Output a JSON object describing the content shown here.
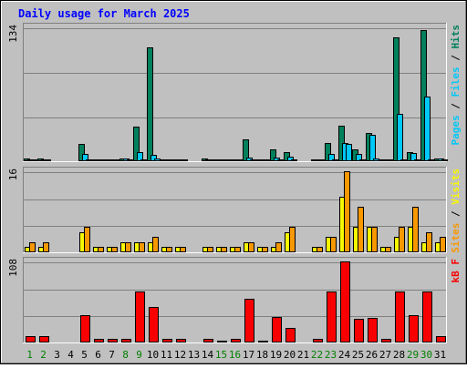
{
  "chart_data": {
    "type": "bar",
    "title": "Daily usage for March 2025",
    "categories": [
      "1",
      "2",
      "3",
      "4",
      "5",
      "6",
      "7",
      "8",
      "9",
      "10",
      "11",
      "12",
      "13",
      "14",
      "15",
      "16",
      "17",
      "18",
      "19",
      "20",
      "21",
      "22",
      "23",
      "24",
      "25",
      "26",
      "27",
      "28",
      "29",
      "30",
      "31"
    ],
    "weekend_days": [
      "1",
      "2",
      "8",
      "9",
      "15",
      "16",
      "22",
      "23",
      "29",
      "30"
    ],
    "panels": [
      {
        "name": "hits-files-pages",
        "ylabel": "Pages / Files / Hits",
        "max_label": "134",
        "ylim": [
          0,
          134
        ],
        "series": [
          {
            "name": "Hits",
            "color": "#00805c",
            "values": [
              3,
              3,
              0,
              0,
              17,
              2,
              2,
              3,
              35,
              114,
              2,
              2,
              0,
              3,
              2,
              2,
              22,
              2,
              12,
              9,
              0,
              2,
              18,
              36,
              12,
              28,
              2,
              124,
              9,
              131,
              3
            ]
          },
          {
            "name": "Files",
            "color": "#00c8f8",
            "values": [
              2,
              2,
              0,
              0,
              7,
              2,
              2,
              3,
              9,
              6,
              2,
              2,
              0,
              2,
              2,
              2,
              4,
              2,
              4,
              5,
              0,
              2,
              7,
              18,
              7,
              26,
              2,
              47,
              8,
              65,
              3
            ]
          },
          {
            "name": "Pages",
            "color": "#00c8f8",
            "values": [
              2,
              2,
              0,
              0,
              2,
              2,
              2,
              2,
              2,
              3,
              2,
              2,
              0,
              2,
              2,
              2,
              2,
              2,
              2,
              2,
              0,
              2,
              2,
              17,
              2,
              3,
              2,
              2,
              2,
              2,
              2
            ]
          }
        ]
      },
      {
        "name": "visits-sites",
        "ylabel": "Sites / Visits",
        "max_label": "16",
        "ylim": [
          0,
          16
        ],
        "series": [
          {
            "name": "Visits",
            "color": "#f8f800",
            "values": [
              1,
              1,
              0,
              0,
              4,
              1,
              1,
              2,
              2,
              2,
              1,
              1,
              0,
              1,
              1,
              1,
              2,
              1,
              1,
              4,
              0,
              1,
              3,
              11,
              5,
              5,
              1,
              3,
              5,
              2,
              2
            ]
          },
          {
            "name": "Sites",
            "color": "#f89800",
            "values": [
              2,
              2,
              0,
              0,
              5,
              1,
              1,
              2,
              2,
              3,
              1,
              1,
              0,
              1,
              1,
              1,
              2,
              1,
              2,
              5,
              0,
              1,
              3,
              16,
              9,
              5,
              1,
              5,
              9,
              4,
              3
            ]
          }
        ]
      },
      {
        "name": "kbytes",
        "ylabel": "kB F",
        "max_label": "108",
        "ylim": [
          0,
          108
        ],
        "series": [
          {
            "name": "kB F",
            "color": "#f80000",
            "values": [
              8,
              8,
              0,
              0,
              36,
              5,
              5,
              5,
              68,
              47,
              5,
              5,
              0,
              5,
              1,
              5,
              58,
              1,
              34,
              20,
              0,
              5,
              68,
              108,
              31,
              33,
              5,
              68,
              37,
              68,
              8
            ]
          }
        ]
      }
    ]
  }
}
